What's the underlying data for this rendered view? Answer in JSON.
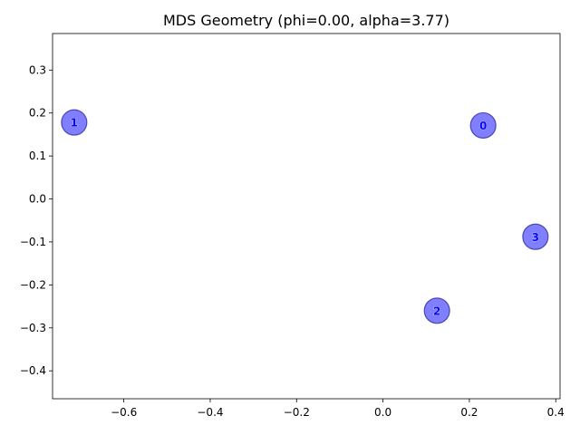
{
  "chart_data": {
    "type": "scatter",
    "title": "MDS Geometry (phi=0.00, alpha=3.77)",
    "xlabel": "",
    "ylabel": "",
    "xlim": [
      -0.765,
      0.41
    ],
    "ylim": [
      -0.465,
      0.385
    ],
    "xticks": [
      -0.6,
      -0.4,
      -0.2,
      0.0,
      0.2,
      0.4
    ],
    "xtick_labels": [
      "−0.6",
      "−0.4",
      "−0.2",
      "0.0",
      "0.2",
      "0.4"
    ],
    "yticks": [
      -0.4,
      -0.3,
      -0.2,
      -0.1,
      0.0,
      0.1,
      0.2,
      0.3
    ],
    "ytick_labels": [
      "−0.4",
      "−0.3",
      "−0.2",
      "−0.1",
      "0.0",
      "0.1",
      "0.2",
      "0.3"
    ],
    "grid": false,
    "points": [
      {
        "label": "0",
        "x": 0.232,
        "y": 0.171
      },
      {
        "label": "1",
        "x": -0.715,
        "y": 0.178
      },
      {
        "label": "2",
        "x": 0.125,
        "y": -0.26
      },
      {
        "label": "3",
        "x": 0.353,
        "y": -0.088
      }
    ],
    "colors": {
      "marker_fill": "#0000ff",
      "marker_edge": "#000080",
      "label_text": "#0000ff"
    }
  }
}
